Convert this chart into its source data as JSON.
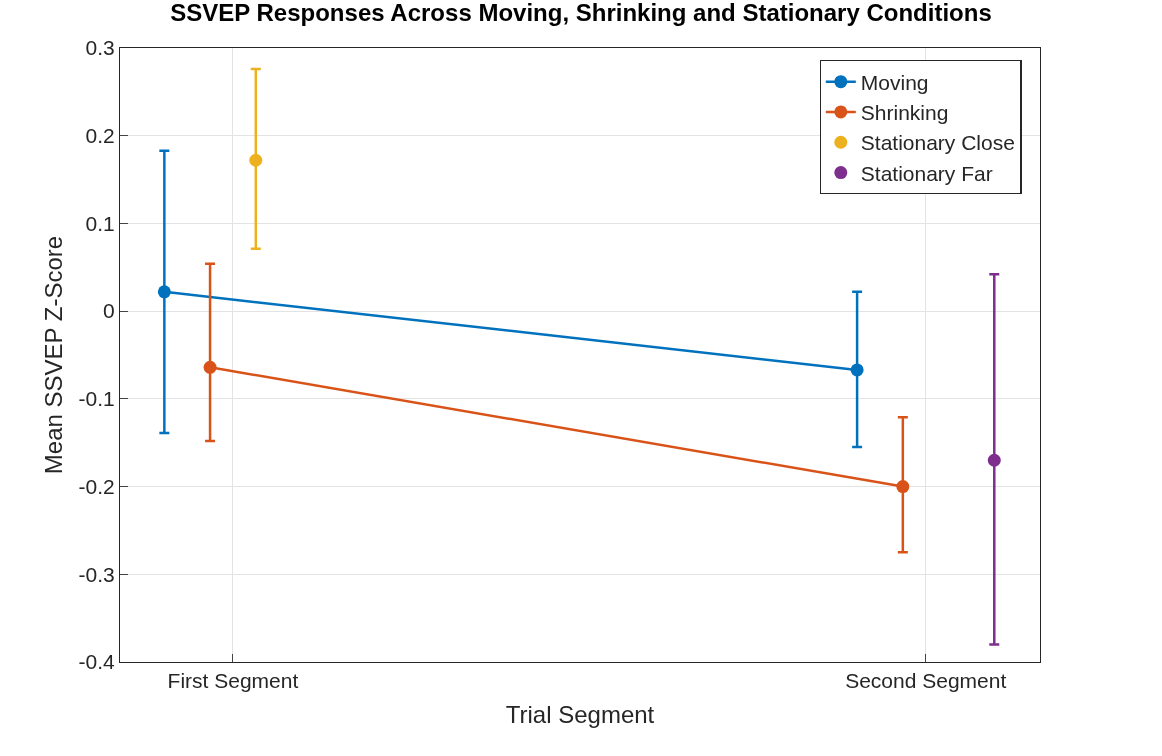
{
  "chart_data": {
    "type": "line",
    "title": "SSVEP Responses Across Moving, Shrinking and Stationary Conditions",
    "xlabel": "Trial Segment",
    "ylabel": "Mean SSVEP Z-Score",
    "categories": [
      "First Segment",
      "Second Segment"
    ],
    "ylim": [
      -0.4,
      0.3
    ],
    "yticks": [
      -0.4,
      -0.3,
      -0.2,
      -0.1,
      0,
      0.1,
      0.2,
      0.3
    ],
    "grid": true,
    "legend": "top right",
    "marker": "circle",
    "line_style": "solid",
    "series": [
      {
        "name": "Moving",
        "color": "#0072bd",
        "values": [
          0.022,
          -0.067
        ],
        "errors": [
          [
            -0.139,
            0.183
          ],
          [
            -0.155,
            0.022
          ]
        ]
      },
      {
        "name": "Shrinking",
        "color": "#d95319",
        "values": [
          -0.064,
          -0.2
        ],
        "errors": [
          [
            -0.148,
            0.054
          ],
          [
            -0.275,
            -0.121
          ]
        ]
      },
      {
        "name": "Stationary Close",
        "type": "scatter",
        "color": "#edb120",
        "values": [
          0.172,
          null
        ],
        "errors": [
          [
            0.071,
            0.276
          ],
          null
        ]
      },
      {
        "name": "Stationary Far",
        "type": "scatter",
        "color": "#7e2f8e",
        "values": [
          null,
          -0.17
        ],
        "errors": [
          null,
          [
            -0.38,
            0.042
          ]
        ]
      }
    ]
  }
}
